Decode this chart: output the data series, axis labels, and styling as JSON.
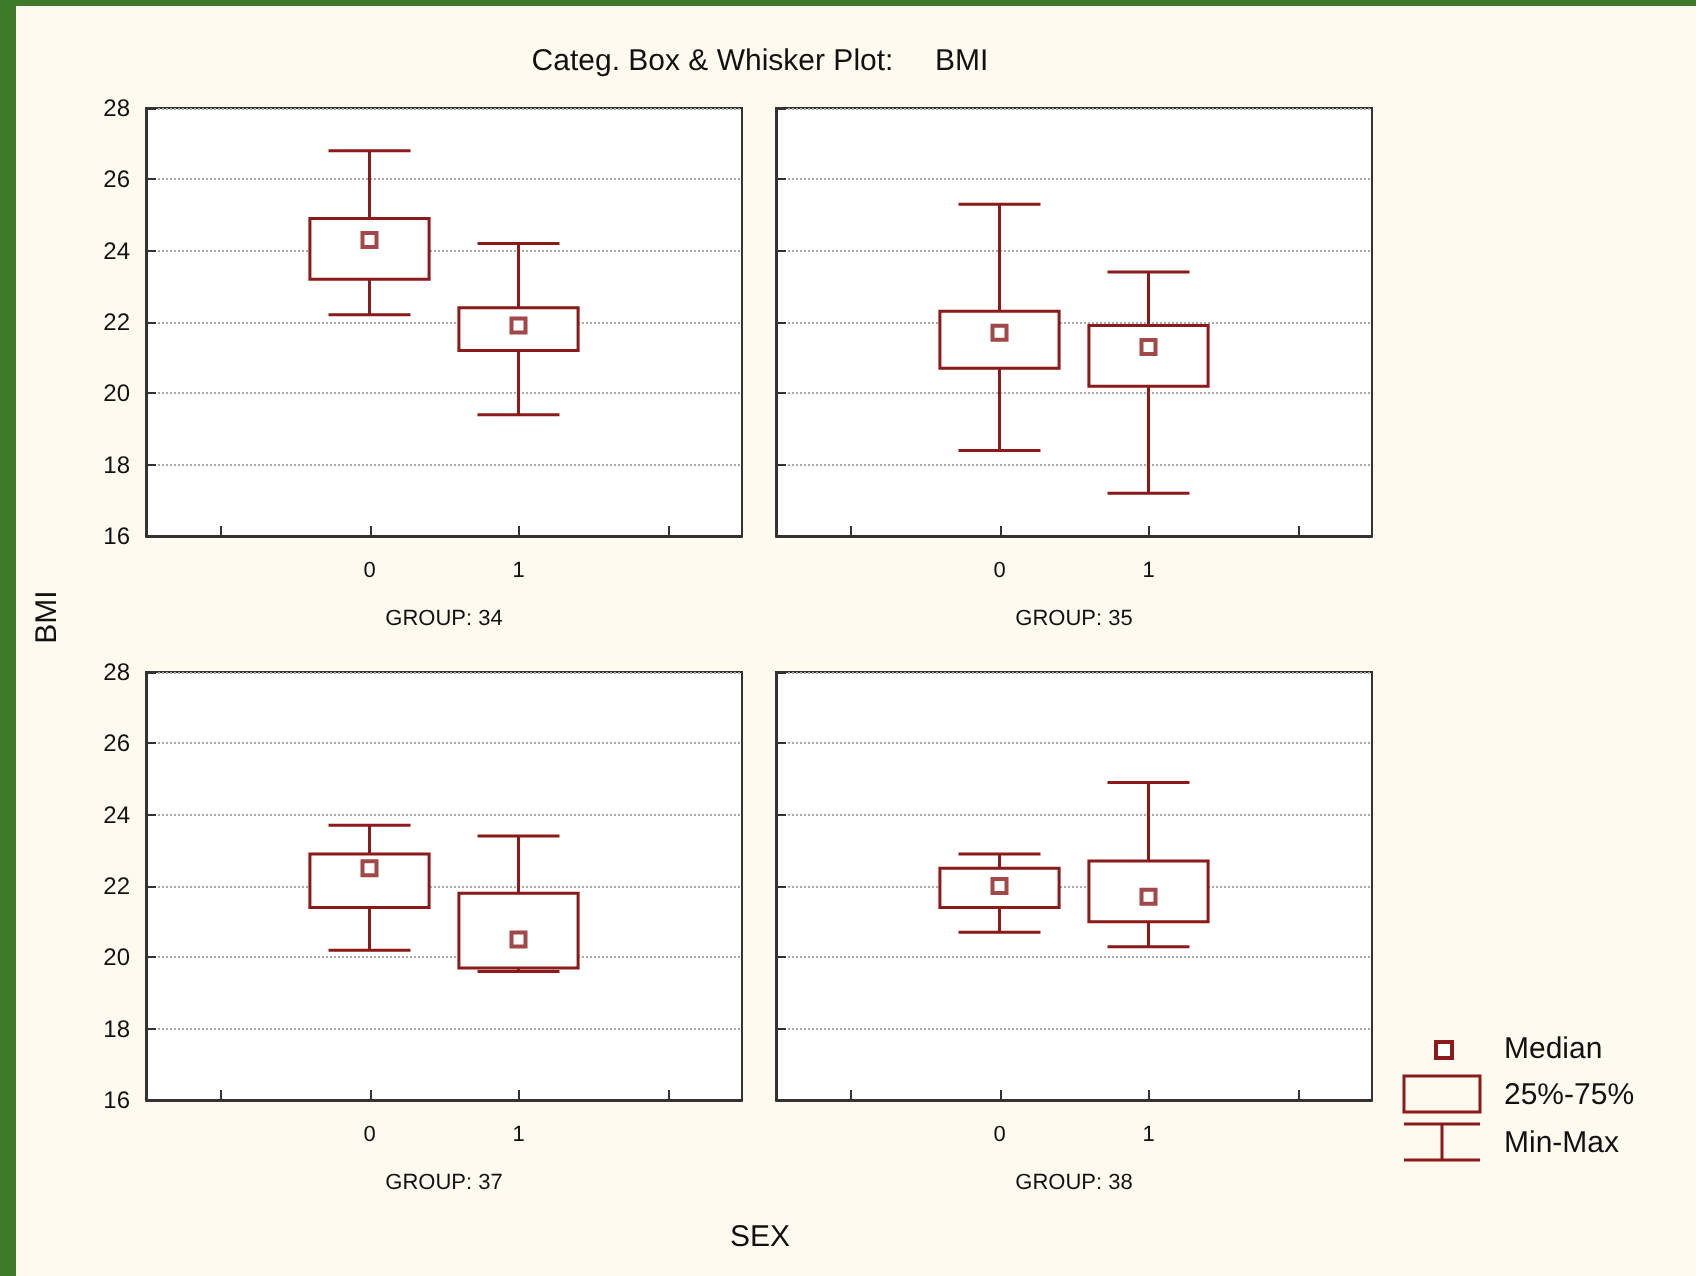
{
  "chart_data": [
    {
      "type": "box",
      "title": "Categ. Box & Whisker Plot:     BMI",
      "ylabel": "BMI",
      "xlabel": "GROUP: 34",
      "annotations": [
        "SEX"
      ],
      "categories": [
        "0",
        "1"
      ],
      "ylim": [
        16,
        28
      ],
      "yticks": [
        16,
        18,
        20,
        22,
        24,
        26,
        28
      ],
      "grid": "y",
      "marker": "square",
      "series": [
        {
          "color": "#8b1a1a",
          "boxes": [
            {
              "low": 22.2,
              "q1": 23.2,
              "median": 24.3,
              "q3": 24.9,
              "high": 26.8
            },
            {
              "low": 19.4,
              "q1": 21.2,
              "median": 21.9,
              "q3": 22.4,
              "high": 24.2
            }
          ]
        }
      ]
    },
    {
      "type": "box",
      "xlabel": "GROUP: 35",
      "categories": [
        "0",
        "1"
      ],
      "ylim": [
        16,
        28
      ],
      "yticks": [
        16,
        18,
        20,
        22,
        24,
        26,
        28
      ],
      "grid": "y",
      "marker": "square",
      "tick_labels": "x",
      "series": [
        {
          "color": "#8b1a1a",
          "boxes": [
            {
              "low": 18.4,
              "q1": 20.7,
              "median": 21.7,
              "q3": 22.3,
              "high": 25.3
            },
            {
              "low": 17.2,
              "q1": 20.2,
              "median": 21.3,
              "q3": 21.9,
              "high": 23.4
            }
          ]
        }
      ]
    },
    {
      "type": "box",
      "xlabel": "GROUP: 37",
      "categories": [
        "0",
        "1"
      ],
      "ylim": [
        16,
        28
      ],
      "yticks": [
        16,
        18,
        20,
        22,
        24,
        26,
        28
      ],
      "grid": "y",
      "marker": "square",
      "series": [
        {
          "color": "#8b1a1a",
          "boxes": [
            {
              "low": 20.2,
              "q1": 21.4,
              "median": 22.5,
              "q3": 22.9,
              "high": 23.7
            },
            {
              "low": 19.6,
              "q1": 19.7,
              "median": 20.5,
              "q3": 21.8,
              "high": 23.4
            }
          ]
        }
      ]
    },
    {
      "type": "box",
      "xlabel": "GROUP: 38",
      "categories": [
        "0",
        "1"
      ],
      "ylim": [
        16,
        28
      ],
      "yticks": [
        16,
        18,
        20,
        22,
        24,
        26,
        28
      ],
      "grid": "y",
      "marker": "square",
      "tick_labels": "x",
      "annotations": [
        "Median",
        "25%-75%",
        "Min-Max"
      ],
      "series": [
        {
          "color": "#8b1a1a",
          "boxes": [
            {
              "low": 20.7,
              "q1": 21.4,
              "median": 22.0,
              "q3": 22.5,
              "high": 22.9
            },
            {
              "low": 20.3,
              "q1": 21.0,
              "median": 21.7,
              "q3": 22.7,
              "high": 24.9
            }
          ]
        }
      ]
    }
  ]
}
